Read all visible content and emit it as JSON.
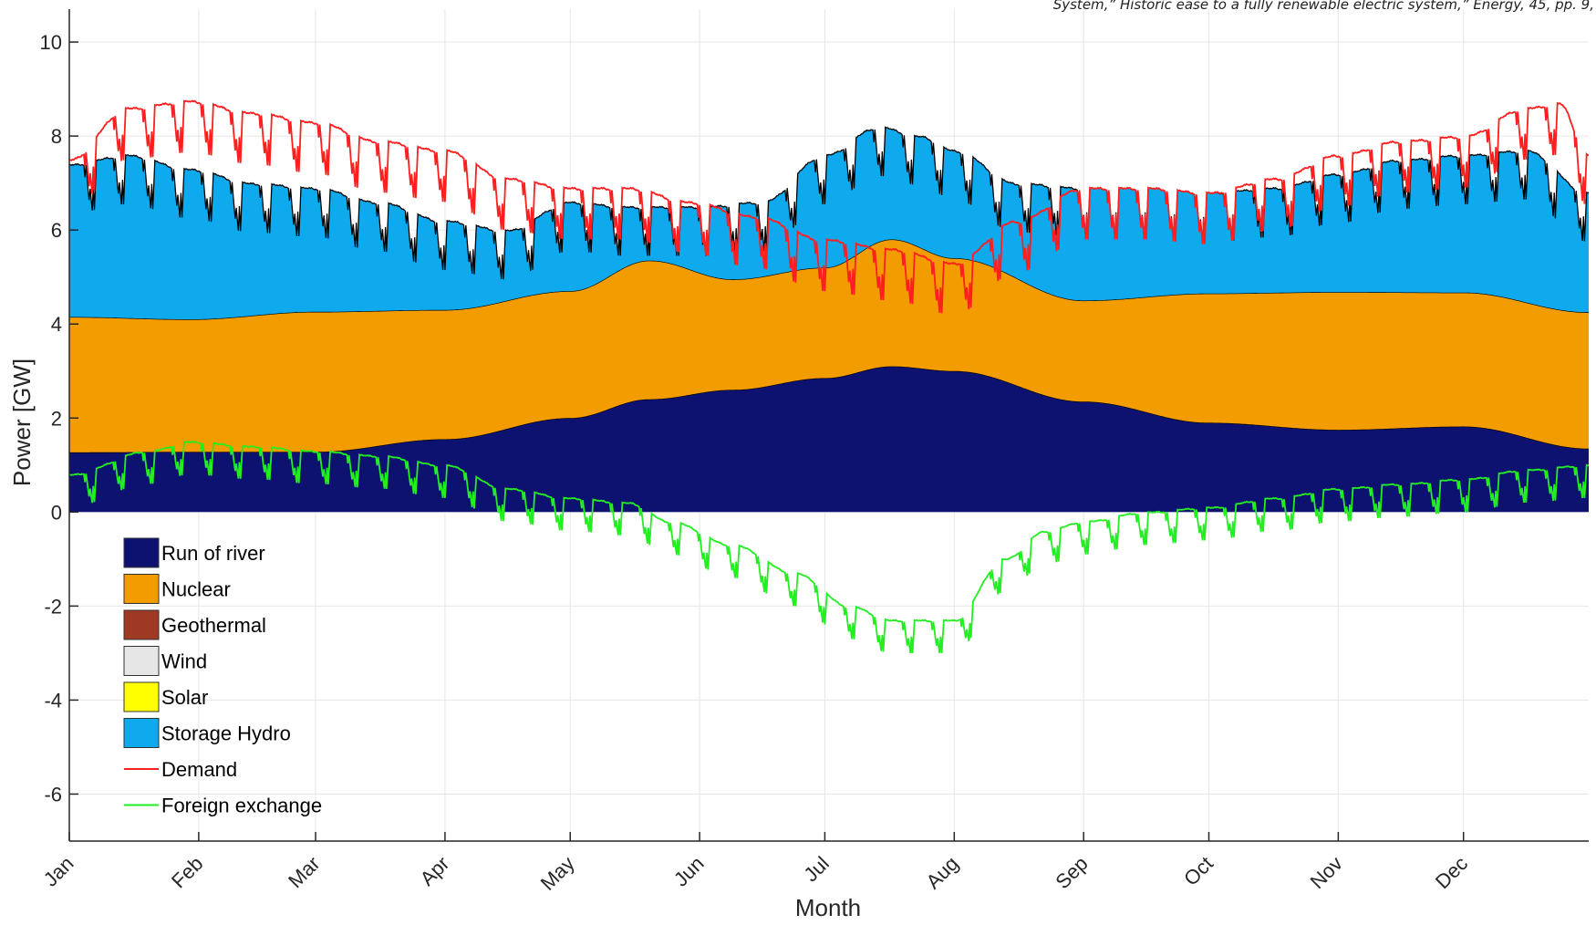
{
  "header_note": "System,” Historic ease to a fully renewable electric system,” Energy, 45, pp. 9,",
  "chart_data": {
    "type": "area",
    "xlabel": "Month",
    "ylabel": "Power [GW]",
    "ylim": [
      -7,
      10.7
    ],
    "xlim": [
      1,
      365
    ],
    "grid": true,
    "legend_position": "bottom-left",
    "month_ticks": {
      "labels": [
        "Jan",
        "Feb",
        "Mar",
        "Apr",
        "May",
        "Jun",
        "Jul",
        "Aug",
        "Sep",
        "Oct",
        "Nov",
        "Dec"
      ],
      "days": [
        1,
        32,
        60,
        91,
        121,
        152,
        182,
        213,
        244,
        274,
        305,
        335
      ]
    },
    "y_ticks": [
      -6,
      -4,
      -2,
      0,
      2,
      4,
      6,
      8,
      10
    ],
    "stacked_series": [
      {
        "name": "Run of river",
        "color": "#0d1270",
        "days": [
          1,
          30,
          60,
          91,
          121,
          140,
          160,
          182,
          198,
          213,
          244,
          274,
          305,
          335,
          365
        ],
        "values": [
          1.27,
          1.28,
          1.28,
          1.55,
          2.0,
          2.4,
          2.6,
          2.85,
          3.1,
          3.0,
          2.35,
          1.9,
          1.75,
          1.82,
          1.35
        ]
      },
      {
        "name": "Nuclear",
        "color": "#f39c00",
        "days": [
          1,
          30,
          60,
          91,
          121,
          140,
          160,
          182,
          198,
          213,
          244,
          274,
          305,
          335,
          365
        ],
        "values": [
          2.88,
          2.82,
          2.98,
          2.75,
          2.7,
          2.95,
          2.35,
          2.35,
          2.7,
          2.4,
          2.15,
          2.75,
          2.93,
          2.85,
          2.9
        ]
      },
      {
        "name": "Geothermal",
        "color": "#9e3a24",
        "days": [
          1,
          365
        ],
        "values": [
          0,
          0
        ]
      },
      {
        "name": "Wind",
        "color": "#e6e6e6",
        "days": [
          1,
          365
        ],
        "values": [
          0,
          0
        ]
      },
      {
        "name": "Solar",
        "color": "#ffff00",
        "days": [
          1,
          365
        ],
        "values": [
          0,
          0
        ]
      },
      {
        "name": "Storage Hydro",
        "color": "#0faaee",
        "days": [
          1,
          15,
          30,
          45,
          60,
          75,
          91,
          106,
          121,
          135,
          152,
          167,
          182,
          195,
          205,
          213,
          228,
          244,
          259,
          274,
          290,
          305,
          320,
          335,
          350,
          365
        ],
        "weekday_peaks": [
          7.4,
          7.6,
          7.3,
          7.0,
          6.9,
          6.6,
          6.2,
          6.0,
          6.6,
          6.5,
          6.5,
          6.6,
          7.6,
          8.2,
          8.0,
          7.7,
          7.0,
          6.9,
          6.9,
          6.8,
          6.9,
          7.2,
          7.5,
          7.6,
          7.7,
          6.8
        ],
        "weekend_dip": 1.05
      }
    ],
    "line_series": [
      {
        "name": "Demand",
        "color": "#ff1f1f",
        "days": [
          1,
          15,
          30,
          45,
          60,
          75,
          91,
          106,
          121,
          135,
          150,
          165,
          182,
          198,
          213,
          228,
          244,
          259,
          274,
          290,
          305,
          320,
          335,
          350,
          358,
          365
        ],
        "weekday_peaks": [
          7.5,
          8.6,
          8.75,
          8.5,
          8.3,
          7.9,
          7.7,
          7.1,
          6.9,
          6.9,
          6.6,
          6.3,
          5.8,
          5.6,
          5.3,
          6.2,
          6.9,
          6.9,
          6.8,
          7.1,
          7.6,
          7.9,
          8.0,
          8.6,
          8.7,
          7.6
        ],
        "weekend_dip": 1.1
      },
      {
        "name": "Foreign exchange",
        "color": "#22ee22",
        "days": [
          1,
          20,
          30,
          45,
          60,
          75,
          91,
          106,
          121,
          135,
          145,
          160,
          175,
          188,
          198,
          213,
          225,
          235,
          244,
          259,
          274,
          290,
          305,
          320,
          335,
          350,
          365
        ],
        "weekday_peaks": [
          0.8,
          1.3,
          1.5,
          1.4,
          1.3,
          1.2,
          1.0,
          0.5,
          0.3,
          0.2,
          -0.2,
          -0.7,
          -1.3,
          -2.0,
          -2.3,
          -2.3,
          -1.0,
          -0.4,
          -0.2,
          0.0,
          0.1,
          0.3,
          0.5,
          0.6,
          0.7,
          0.9,
          1.0
        ],
        "weekend_dip": 0.7
      }
    ]
  }
}
